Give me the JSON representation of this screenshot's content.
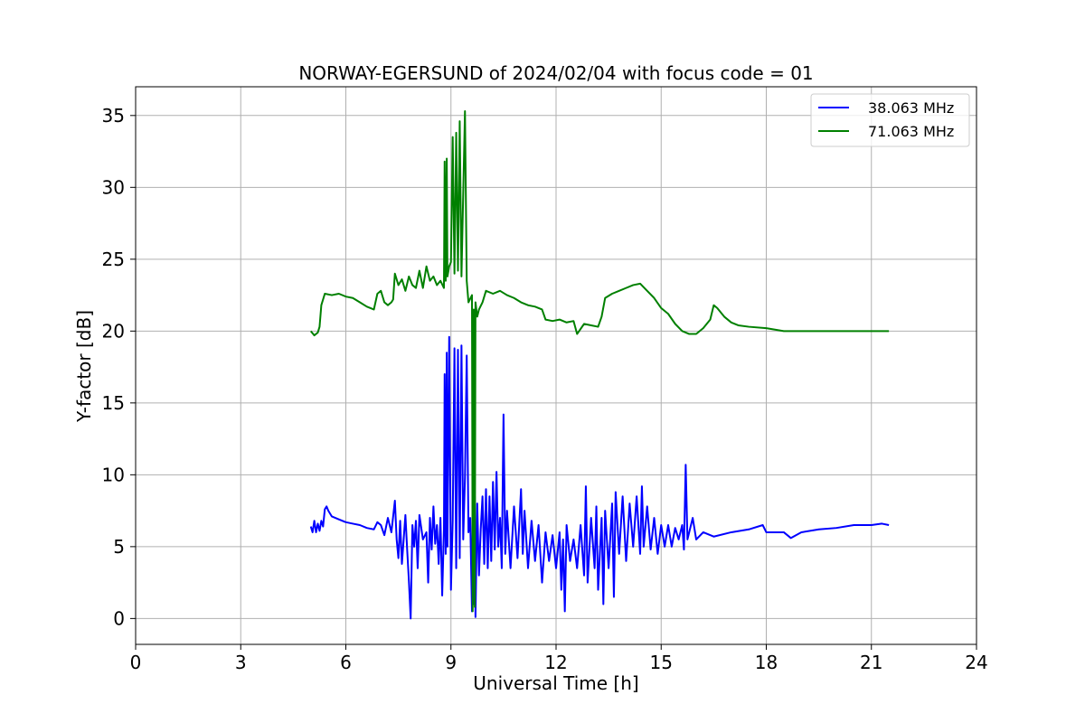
{
  "chart_data": {
    "type": "line",
    "title": "NORWAY-EGERSUND of 2024/02/04 with focus code = 01",
    "xlabel": "Universal Time [h]",
    "ylabel": "Y-factor [dB]",
    "xlim": [
      0,
      24
    ],
    "ylim": [
      -1.8,
      37
    ],
    "xticks": [
      0,
      3,
      6,
      9,
      12,
      15,
      18,
      21,
      24
    ],
    "yticks": [
      0,
      5,
      10,
      15,
      20,
      25,
      30,
      35
    ],
    "grid": true,
    "legend_position": "top-right",
    "series": [
      {
        "name": "38.063 MHz",
        "color": "#0000ff",
        "points": [
          [
            5.0,
            6.4
          ],
          [
            5.05,
            6.0
          ],
          [
            5.1,
            6.8
          ],
          [
            5.15,
            6.0
          ],
          [
            5.2,
            6.6
          ],
          [
            5.25,
            6.1
          ],
          [
            5.3,
            6.8
          ],
          [
            5.35,
            6.4
          ],
          [
            5.4,
            7.6
          ],
          [
            5.45,
            7.8
          ],
          [
            5.5,
            7.5
          ],
          [
            5.6,
            7.1
          ],
          [
            5.8,
            6.9
          ],
          [
            6.0,
            6.7
          ],
          [
            6.2,
            6.6
          ],
          [
            6.4,
            6.5
          ],
          [
            6.6,
            6.3
          ],
          [
            6.8,
            6.2
          ],
          [
            6.9,
            6.7
          ],
          [
            7.0,
            6.5
          ],
          [
            7.1,
            5.8
          ],
          [
            7.2,
            7.0
          ],
          [
            7.3,
            6.0
          ],
          [
            7.4,
            8.2
          ],
          [
            7.45,
            5.5
          ],
          [
            7.5,
            4.2
          ],
          [
            7.55,
            6.8
          ],
          [
            7.6,
            3.8
          ],
          [
            7.7,
            7.2
          ],
          [
            7.75,
            4.8
          ],
          [
            7.8,
            2.6
          ],
          [
            7.85,
            0.0
          ],
          [
            7.9,
            6.5
          ],
          [
            7.95,
            5.0
          ],
          [
            8.0,
            6.8
          ],
          [
            8.05,
            3.5
          ],
          [
            8.1,
            7.2
          ],
          [
            8.2,
            5.5
          ],
          [
            8.3,
            6.0
          ],
          [
            8.35,
            2.5
          ],
          [
            8.4,
            7.0
          ],
          [
            8.45,
            4.8
          ],
          [
            8.5,
            7.8
          ],
          [
            8.55,
            5.2
          ],
          [
            8.6,
            6.5
          ],
          [
            8.65,
            3.8
          ],
          [
            8.7,
            7.0
          ],
          [
            8.75,
            1.6
          ],
          [
            8.8,
            6.2
          ],
          [
            8.82,
            17.0
          ],
          [
            8.85,
            4.5
          ],
          [
            8.88,
            18.5
          ],
          [
            8.9,
            5.0
          ],
          [
            8.95,
            19.6
          ],
          [
            9.0,
            2.0
          ],
          [
            9.05,
            6.8
          ],
          [
            9.1,
            18.8
          ],
          [
            9.15,
            3.5
          ],
          [
            9.2,
            18.7
          ],
          [
            9.25,
            4.2
          ],
          [
            9.3,
            19.0
          ],
          [
            9.35,
            5.5
          ],
          [
            9.4,
            9.8
          ],
          [
            9.45,
            18.3
          ],
          [
            9.5,
            6.0
          ],
          [
            9.55,
            7.0
          ],
          [
            9.6,
            0.5
          ],
          [
            9.62,
            7.5
          ],
          [
            9.65,
            1.0
          ],
          [
            9.68,
            8.5
          ],
          [
            9.7,
            0.1
          ],
          [
            9.75,
            8.0
          ],
          [
            9.8,
            3.0
          ],
          [
            9.85,
            6.2
          ],
          [
            9.9,
            8.5
          ],
          [
            9.95,
            3.8
          ],
          [
            10.0,
            9.0
          ],
          [
            10.05,
            3.5
          ],
          [
            10.1,
            8.5
          ],
          [
            10.15,
            4.0
          ],
          [
            10.2,
            9.5
          ],
          [
            10.25,
            4.8
          ],
          [
            10.3,
            10.2
          ],
          [
            10.35,
            5.0
          ],
          [
            10.4,
            7.0
          ],
          [
            10.45,
            3.5
          ],
          [
            10.5,
            14.2
          ],
          [
            10.55,
            4.5
          ],
          [
            10.6,
            7.5
          ],
          [
            10.7,
            3.5
          ],
          [
            10.8,
            7.8
          ],
          [
            10.9,
            4.2
          ],
          [
            11.0,
            9.0
          ],
          [
            11.05,
            4.5
          ],
          [
            11.1,
            7.5
          ],
          [
            11.2,
            3.5
          ],
          [
            11.3,
            6.8
          ],
          [
            11.4,
            4.0
          ],
          [
            11.5,
            6.5
          ],
          [
            11.6,
            2.5
          ],
          [
            11.7,
            6.0
          ],
          [
            11.8,
            4.0
          ],
          [
            11.9,
            5.8
          ],
          [
            12.0,
            3.5
          ],
          [
            12.1,
            6.0
          ],
          [
            12.15,
            2.0
          ],
          [
            12.2,
            5.5
          ],
          [
            12.25,
            0.5
          ],
          [
            12.3,
            6.5
          ],
          [
            12.4,
            4.0
          ],
          [
            12.5,
            5.5
          ],
          [
            12.6,
            3.5
          ],
          [
            12.7,
            6.5
          ],
          [
            12.8,
            3.0
          ],
          [
            12.85,
            9.2
          ],
          [
            12.9,
            2.5
          ],
          [
            13.0,
            7.0
          ],
          [
            13.1,
            3.5
          ],
          [
            13.15,
            7.8
          ],
          [
            13.2,
            2.0
          ],
          [
            13.3,
            7.0
          ],
          [
            13.35,
            1.0
          ],
          [
            13.4,
            7.5
          ],
          [
            13.5,
            3.5
          ],
          [
            13.6,
            8.0
          ],
          [
            13.65,
            1.5
          ],
          [
            13.7,
            8.8
          ],
          [
            13.8,
            4.5
          ],
          [
            13.9,
            8.5
          ],
          [
            14.0,
            4.0
          ],
          [
            14.1,
            8.0
          ],
          [
            14.2,
            5.0
          ],
          [
            14.3,
            8.5
          ],
          [
            14.4,
            4.5
          ],
          [
            14.45,
            9.2
          ],
          [
            14.5,
            5.0
          ],
          [
            14.6,
            7.8
          ],
          [
            14.7,
            4.8
          ],
          [
            14.8,
            7.0
          ],
          [
            14.9,
            4.5
          ],
          [
            15.0,
            6.5
          ],
          [
            15.1,
            5.0
          ],
          [
            15.2,
            6.5
          ],
          [
            15.3,
            5.0
          ],
          [
            15.4,
            6.3
          ],
          [
            15.5,
            5.5
          ],
          [
            15.6,
            6.5
          ],
          [
            15.65,
            4.8
          ],
          [
            15.7,
            10.7
          ],
          [
            15.75,
            5.5
          ],
          [
            15.8,
            6.0
          ],
          [
            15.9,
            7.0
          ],
          [
            16.0,
            5.5
          ],
          [
            16.2,
            6.0
          ],
          [
            16.5,
            5.7
          ],
          [
            17.0,
            6.0
          ],
          [
            17.5,
            6.2
          ],
          [
            17.9,
            6.5
          ],
          [
            18.0,
            6.0
          ],
          [
            18.3,
            6.0
          ],
          [
            18.5,
            6.0
          ],
          [
            18.7,
            5.6
          ],
          [
            19.0,
            6.0
          ],
          [
            19.5,
            6.2
          ],
          [
            20.0,
            6.3
          ],
          [
            20.5,
            6.5
          ],
          [
            21.0,
            6.5
          ],
          [
            21.3,
            6.6
          ],
          [
            21.5,
            6.5
          ]
        ]
      },
      {
        "name": "71.063 MHz",
        "color": "#008000",
        "points": [
          [
            5.0,
            20.0
          ],
          [
            5.1,
            19.7
          ],
          [
            5.2,
            19.9
          ],
          [
            5.25,
            20.3
          ],
          [
            5.3,
            21.8
          ],
          [
            5.4,
            22.6
          ],
          [
            5.6,
            22.5
          ],
          [
            5.8,
            22.6
          ],
          [
            6.0,
            22.4
          ],
          [
            6.2,
            22.3
          ],
          [
            6.4,
            22.0
          ],
          [
            6.6,
            21.7
          ],
          [
            6.8,
            21.5
          ],
          [
            6.9,
            22.6
          ],
          [
            7.0,
            22.8
          ],
          [
            7.1,
            22.0
          ],
          [
            7.2,
            21.8
          ],
          [
            7.3,
            22.0
          ],
          [
            7.35,
            22.2
          ],
          [
            7.4,
            24.0
          ],
          [
            7.5,
            23.2
          ],
          [
            7.6,
            23.6
          ],
          [
            7.7,
            22.8
          ],
          [
            7.8,
            23.8
          ],
          [
            7.9,
            23.2
          ],
          [
            8.0,
            23.0
          ],
          [
            8.1,
            24.2
          ],
          [
            8.2,
            23.0
          ],
          [
            8.3,
            24.5
          ],
          [
            8.4,
            23.5
          ],
          [
            8.5,
            23.8
          ],
          [
            8.6,
            23.2
          ],
          [
            8.7,
            23.5
          ],
          [
            8.8,
            23.0
          ],
          [
            8.82,
            31.8
          ],
          [
            8.85,
            23.5
          ],
          [
            8.88,
            32.0
          ],
          [
            8.9,
            23.8
          ],
          [
            8.95,
            24.5
          ],
          [
            9.0,
            24.8
          ],
          [
            9.05,
            33.5
          ],
          [
            9.1,
            24.0
          ],
          [
            9.15,
            33.8
          ],
          [
            9.2,
            24.2
          ],
          [
            9.25,
            34.6
          ],
          [
            9.3,
            23.8
          ],
          [
            9.4,
            35.3
          ],
          [
            9.45,
            23.5
          ],
          [
            9.5,
            22.0
          ],
          [
            9.6,
            22.5
          ],
          [
            9.62,
            0.5
          ],
          [
            9.65,
            21.5
          ],
          [
            9.68,
            0.8
          ],
          [
            9.7,
            22.0
          ],
          [
            9.75,
            21.0
          ],
          [
            9.8,
            21.5
          ],
          [
            9.9,
            22.0
          ],
          [
            10.0,
            22.8
          ],
          [
            10.2,
            22.6
          ],
          [
            10.4,
            22.8
          ],
          [
            10.6,
            22.5
          ],
          [
            10.8,
            22.3
          ],
          [
            11.0,
            22.0
          ],
          [
            11.2,
            21.8
          ],
          [
            11.4,
            21.7
          ],
          [
            11.6,
            21.5
          ],
          [
            11.7,
            20.8
          ],
          [
            11.9,
            20.7
          ],
          [
            12.1,
            20.8
          ],
          [
            12.3,
            20.6
          ],
          [
            12.5,
            20.7
          ],
          [
            12.6,
            19.8
          ],
          [
            12.8,
            20.5
          ],
          [
            13.0,
            20.4
          ],
          [
            13.2,
            20.3
          ],
          [
            13.3,
            21.0
          ],
          [
            13.4,
            22.3
          ],
          [
            13.6,
            22.6
          ],
          [
            13.8,
            22.8
          ],
          [
            14.0,
            23.0
          ],
          [
            14.2,
            23.2
          ],
          [
            14.4,
            23.3
          ],
          [
            14.6,
            22.8
          ],
          [
            14.8,
            22.3
          ],
          [
            15.0,
            21.6
          ],
          [
            15.2,
            21.2
          ],
          [
            15.4,
            20.5
          ],
          [
            15.6,
            20.0
          ],
          [
            15.8,
            19.8
          ],
          [
            16.0,
            19.8
          ],
          [
            16.2,
            20.2
          ],
          [
            16.4,
            20.8
          ],
          [
            16.5,
            21.8
          ],
          [
            16.6,
            21.6
          ],
          [
            16.8,
            21.0
          ],
          [
            17.0,
            20.6
          ],
          [
            17.2,
            20.4
          ],
          [
            17.5,
            20.3
          ],
          [
            18.0,
            20.2
          ],
          [
            18.5,
            20.0
          ],
          [
            19.0,
            20.0
          ],
          [
            19.5,
            20.0
          ],
          [
            20.0,
            20.0
          ],
          [
            20.5,
            20.0
          ],
          [
            21.0,
            20.0
          ],
          [
            21.5,
            20.0
          ]
        ]
      }
    ]
  }
}
